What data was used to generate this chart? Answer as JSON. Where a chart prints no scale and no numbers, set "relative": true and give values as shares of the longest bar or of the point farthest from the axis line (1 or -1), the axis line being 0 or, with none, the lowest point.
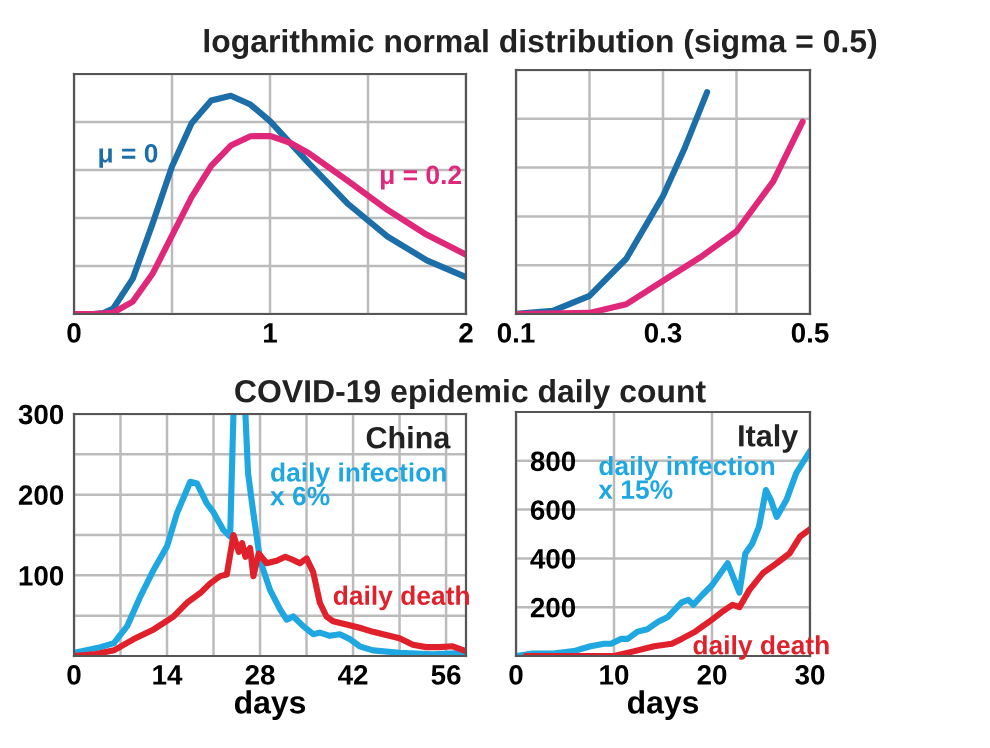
{
  "chart_data": [
    {
      "type": "line",
      "title": "logarithmic normal distribution (sigma = 0.5)",
      "relative": true,
      "grid": true,
      "tick_labels": "x",
      "xlim": [
        0,
        2
      ],
      "xticks": [
        0,
        {
          "value": 0.5,
          "label": null
        },
        1,
        {
          "value": 1.5,
          "label": null
        },
        2
      ],
      "series": [
        {
          "name": "μ = 0",
          "color": "#1b6ea8",
          "x": [
            0,
            0.1,
            0.15,
            0.2,
            0.3,
            0.4,
            0.5,
            0.6,
            0.7,
            0.8,
            0.9,
            1.0,
            1.2,
            1.4,
            1.6,
            1.8,
            2.0
          ],
          "values": [
            0,
            0,
            0.004,
            0.025,
            0.162,
            0.412,
            0.676,
            0.874,
            0.979,
            1,
            0.96,
            0.884,
            0.689,
            0.503,
            0.355,
            0.246,
            0.169
          ]
        },
        {
          "name": "μ = 0.2",
          "color": "#e0287a",
          "x": [
            0,
            0.1,
            0.2,
            0.3,
            0.4,
            0.5,
            0.6,
            0.7,
            0.8,
            0.9,
            1.0,
            1.1,
            1.2,
            1.4,
            1.6,
            1.8,
            2.0
          ],
          "values": [
            0,
            0,
            0.006,
            0.057,
            0.183,
            0.359,
            0.536,
            0.679,
            0.772,
            0.815,
            0.816,
            0.786,
            0.736,
            0.608,
            0.477,
            0.363,
            0.272
          ]
        }
      ]
    },
    {
      "type": "line",
      "relative": true,
      "grid": true,
      "tick_labels": "x",
      "xlim": [
        0.1,
        0.5
      ],
      "xticks": [
        0.1,
        {
          "value": 0.2,
          "label": null
        },
        0.3,
        {
          "value": 0.4,
          "label": null
        },
        0.5
      ],
      "series": [
        {
          "color": "#1b6ea8",
          "x": [
            0.1,
            0.15,
            0.2,
            0.25,
            0.3,
            0.33,
            0.36
          ],
          "values": [
            0.001,
            0.014,
            0.082,
            0.249,
            0.532,
            0.752,
            1
          ]
        },
        {
          "color": "#e0287a",
          "x": [
            0.1,
            0.2,
            0.25,
            0.3,
            0.35,
            0.4,
            0.45,
            0.49
          ],
          "values": [
            0,
            0.005,
            0.044,
            0.149,
            0.254,
            0.373,
            0.598,
            0.867
          ]
        }
      ]
    },
    {
      "type": "line",
      "title": "COVID-19 epidemic daily count",
      "subtitle": "China",
      "xlabel": "days",
      "grid": true,
      "xlim": [
        0,
        59
      ],
      "xticks": [
        0,
        {
          "value": 7,
          "label": null
        },
        14,
        {
          "value": 21,
          "label": null
        },
        28,
        {
          "value": 35,
          "label": null
        },
        42,
        {
          "value": 49,
          "label": null
        },
        56
      ],
      "ylim": [
        0,
        300
      ],
      "yticks": [
        {
          "value": 50,
          "label": null
        },
        100,
        {
          "value": 150,
          "label": null
        },
        200,
        {
          "value": 250,
          "label": null
        },
        300
      ],
      "series": [
        {
          "name": "daily infection\nx 6%",
          "color": "#1ea7e1",
          "x": [
            0,
            4,
            6,
            8,
            10,
            12,
            14,
            15.5,
            17.5,
            18.5,
            20,
            21,
            22.5,
            23.5,
            24,
            25,
            25.8,
            26.2,
            27,
            28,
            29.5,
            31,
            32,
            33,
            34.5,
            36,
            37,
            38.5,
            40,
            41.5,
            43,
            45,
            49,
            54,
            59
          ],
          "values": [
            4,
            11,
            16,
            37,
            74,
            107,
            136,
            177,
            216,
            214,
            189,
            178,
            156,
            148,
            300,
            null,
            300,
            226,
            177,
            119,
            82,
            58,
            45,
            49,
            37,
            27,
            29,
            25,
            27,
            21,
            12,
            7,
            4,
            2,
            4
          ]
        },
        {
          "name": "daily death",
          "color": "#e0202a",
          "x": [
            0,
            3,
            6,
            9,
            12,
            15,
            17,
            19,
            20.5,
            22,
            23,
            24,
            24.8,
            25.3,
            25.8,
            26.5,
            27,
            27.8,
            29,
            30.5,
            31.8,
            33,
            34,
            35,
            36,
            37,
            38,
            39,
            41,
            43,
            45,
            47,
            49,
            51,
            53,
            55,
            57,
            59
          ],
          "values": [
            0,
            2,
            7,
            21,
            33,
            49,
            66,
            78,
            90,
            99,
            101,
            150,
            129,
            140,
            123,
            134,
            99,
            127,
            115,
            118,
            123,
            119,
            115,
            121,
            104,
            66,
            49,
            43,
            39,
            35,
            30,
            26,
            22,
            14,
            11,
            11,
            12,
            6
          ]
        }
      ]
    },
    {
      "type": "line",
      "subtitle": "Italy",
      "xlabel": "days",
      "grid": true,
      "xlim": [
        0,
        30
      ],
      "xticks": [
        0,
        10,
        20,
        30
      ],
      "ylim": [
        0,
        1000
      ],
      "yticks": [
        200,
        400,
        600,
        800
      ],
      "series": [
        {
          "name": "daily infection\nx 15%",
          "color": "#1ea7e1",
          "x": [
            0,
            1.7,
            3.8,
            5.9,
            7.6,
            9,
            9.7,
            10.7,
            11.4,
            12.4,
            13.4,
            14.5,
            15.5,
            16.2,
            16.9,
            17.6,
            18.1,
            19,
            20,
            20.7,
            21.6,
            22.3,
            22.8,
            23.4,
            24.1,
            24.8,
            25.5,
            26,
            26.6,
            27.6,
            28.6,
            30
          ],
          "values": [
            0,
            10,
            10,
            20,
            40,
            50,
            50,
            70,
            70,
            100,
            110,
            140,
            160,
            190,
            220,
            230,
            210,
            250,
            290,
            330,
            380,
            310,
            260,
            420,
            460,
            530,
            680,
            640,
            570,
            640,
            750,
            840
          ]
        },
        {
          "name": "daily death",
          "color": "#e0202a",
          "x": [
            1,
            3.1,
            6.6,
            10,
            12.1,
            14.1,
            15.9,
            16.9,
            18.3,
            19.7,
            21,
            22.1,
            22.8,
            23.8,
            25.2,
            26.6,
            27.9,
            29,
            30
          ],
          "values": [
            0,
            0,
            0,
            0,
            20,
            40,
            50,
            70,
            100,
            140,
            180,
            210,
            200,
            270,
            340,
            380,
            420,
            490,
            520
          ]
        }
      ]
    }
  ]
}
